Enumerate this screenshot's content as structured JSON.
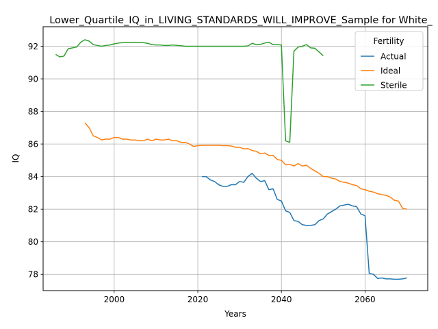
{
  "chart_data": {
    "type": "line",
    "title": "Lower_Quartile_IQ_in_LIVING_STANDARDS_WILL_IMPROVE_Sample for White_",
    "xlabel": "Years",
    "ylabel": "IQ",
    "xlim": [
      1983,
      2075
    ],
    "ylim": [
      77.0,
      93.2
    ],
    "xticks": [
      2000,
      2020,
      2040,
      2060
    ],
    "yticks": [
      78,
      80,
      82,
      84,
      86,
      88,
      90,
      92
    ],
    "grid": true,
    "legend": {
      "title": "Fertility",
      "position": "top-right"
    },
    "series": [
      {
        "name": "Actual",
        "color": "#1f77b4",
        "points": [
          [
            2021,
            84.0
          ],
          [
            2022,
            84.0
          ],
          [
            2023,
            83.8
          ],
          [
            2024,
            83.7
          ],
          [
            2025,
            83.5
          ],
          [
            2026,
            83.4
          ],
          [
            2027,
            83.4
          ],
          [
            2028,
            83.5
          ],
          [
            2029,
            83.5
          ],
          [
            2030,
            83.7
          ],
          [
            2031,
            83.65
          ],
          [
            2032,
            84.0
          ],
          [
            2033,
            84.2
          ],
          [
            2034,
            83.9
          ],
          [
            2035,
            83.7
          ],
          [
            2036,
            83.75
          ],
          [
            2037,
            83.2
          ],
          [
            2038,
            83.25
          ],
          [
            2039,
            82.6
          ],
          [
            2040,
            82.5
          ],
          [
            2041,
            81.9
          ],
          [
            2042,
            81.8
          ],
          [
            2043,
            81.3
          ],
          [
            2044,
            81.25
          ],
          [
            2045,
            81.05
          ],
          [
            2046,
            81.0
          ],
          [
            2047,
            81.0
          ],
          [
            2048,
            81.05
          ],
          [
            2049,
            81.3
          ],
          [
            2050,
            81.4
          ],
          [
            2051,
            81.7
          ],
          [
            2052,
            81.85
          ],
          [
            2053,
            82.0
          ],
          [
            2054,
            82.2
          ],
          [
            2055,
            82.25
          ],
          [
            2056,
            82.3
          ],
          [
            2057,
            82.2
          ],
          [
            2058,
            82.15
          ],
          [
            2059,
            81.7
          ],
          [
            2060,
            81.6
          ],
          [
            2061,
            78.05
          ],
          [
            2062,
            78.0
          ],
          [
            2063,
            77.75
          ],
          [
            2064,
            77.78
          ],
          [
            2065,
            77.72
          ],
          [
            2066,
            77.72
          ],
          [
            2067,
            77.7
          ],
          [
            2068,
            77.7
          ],
          [
            2069,
            77.72
          ],
          [
            2070,
            77.78
          ]
        ]
      },
      {
        "name": "Ideal",
        "color": "#ff7f0e",
        "points": [
          [
            1993,
            87.3
          ],
          [
            1994,
            87.0
          ],
          [
            1995,
            86.5
          ],
          [
            1996,
            86.4
          ],
          [
            1997,
            86.25
          ],
          [
            1998,
            86.3
          ],
          [
            1999,
            86.3
          ],
          [
            2000,
            86.4
          ],
          [
            2001,
            86.4
          ],
          [
            2002,
            86.3
          ],
          [
            2003,
            86.3
          ],
          [
            2004,
            86.25
          ],
          [
            2005,
            86.25
          ],
          [
            2006,
            86.2
          ],
          [
            2007,
            86.2
          ],
          [
            2008,
            86.3
          ],
          [
            2009,
            86.2
          ],
          [
            2010,
            86.3
          ],
          [
            2011,
            86.25
          ],
          [
            2012,
            86.25
          ],
          [
            2013,
            86.3
          ],
          [
            2014,
            86.2
          ],
          [
            2015,
            86.2
          ],
          [
            2016,
            86.1
          ],
          [
            2017,
            86.1
          ],
          [
            2018,
            86.0
          ],
          [
            2019,
            85.85
          ],
          [
            2020,
            85.9
          ],
          [
            2021,
            85.92
          ],
          [
            2022,
            85.92
          ],
          [
            2023,
            85.92
          ],
          [
            2024,
            85.92
          ],
          [
            2025,
            85.92
          ],
          [
            2026,
            85.9
          ],
          [
            2027,
            85.9
          ],
          [
            2028,
            85.88
          ],
          [
            2029,
            85.8
          ],
          [
            2030,
            85.8
          ],
          [
            2031,
            85.7
          ],
          [
            2032,
            85.72
          ],
          [
            2033,
            85.6
          ],
          [
            2034,
            85.55
          ],
          [
            2035,
            85.4
          ],
          [
            2036,
            85.45
          ],
          [
            2037,
            85.3
          ],
          [
            2038,
            85.3
          ],
          [
            2039,
            85.05
          ],
          [
            2040,
            85.0
          ],
          [
            2041,
            84.72
          ],
          [
            2042,
            84.75
          ],
          [
            2043,
            84.65
          ],
          [
            2044,
            84.8
          ],
          [
            2045,
            84.65
          ],
          [
            2046,
            84.7
          ],
          [
            2047,
            84.5
          ],
          [
            2048,
            84.35
          ],
          [
            2049,
            84.2
          ],
          [
            2050,
            84.0
          ],
          [
            2051,
            84.0
          ],
          [
            2052,
            83.9
          ],
          [
            2053,
            83.85
          ],
          [
            2054,
            83.7
          ],
          [
            2055,
            83.65
          ],
          [
            2056,
            83.6
          ],
          [
            2057,
            83.5
          ],
          [
            2058,
            83.45
          ],
          [
            2059,
            83.25
          ],
          [
            2060,
            83.2
          ],
          [
            2061,
            83.1
          ],
          [
            2062,
            83.05
          ],
          [
            2063,
            82.95
          ],
          [
            2064,
            82.9
          ],
          [
            2065,
            82.85
          ],
          [
            2066,
            82.75
          ],
          [
            2067,
            82.55
          ],
          [
            2068,
            82.5
          ],
          [
            2069,
            82.05
          ],
          [
            2070,
            82.0
          ]
        ]
      },
      {
        "name": "Sterile",
        "color": "#2ca02c",
        "points": [
          [
            1986,
            91.5
          ],
          [
            1987,
            91.35
          ],
          [
            1988,
            91.4
          ],
          [
            1989,
            91.85
          ],
          [
            1990,
            91.9
          ],
          [
            1991,
            91.95
          ],
          [
            1992,
            92.25
          ],
          [
            1993,
            92.4
          ],
          [
            1994,
            92.32
          ],
          [
            1995,
            92.1
          ],
          [
            1996,
            92.05
          ],
          [
            1997,
            92.0
          ],
          [
            1998,
            92.05
          ],
          [
            1999,
            92.08
          ],
          [
            2000,
            92.15
          ],
          [
            2001,
            92.2
          ],
          [
            2002,
            92.22
          ],
          [
            2003,
            92.25
          ],
          [
            2004,
            92.22
          ],
          [
            2005,
            92.25
          ],
          [
            2006,
            92.22
          ],
          [
            2007,
            92.22
          ],
          [
            2008,
            92.18
          ],
          [
            2009,
            92.1
          ],
          [
            2010,
            92.08
          ],
          [
            2011,
            92.08
          ],
          [
            2012,
            92.05
          ],
          [
            2013,
            92.05
          ],
          [
            2014,
            92.08
          ],
          [
            2015,
            92.05
          ],
          [
            2016,
            92.03
          ],
          [
            2017,
            92.0
          ],
          [
            2018,
            92.0
          ],
          [
            2019,
            92.0
          ],
          [
            2020,
            92.0
          ],
          [
            2021,
            92.0
          ],
          [
            2022,
            92.0
          ],
          [
            2023,
            92.0
          ],
          [
            2024,
            92.0
          ],
          [
            2025,
            92.0
          ],
          [
            2026,
            92.0
          ],
          [
            2027,
            92.0
          ],
          [
            2028,
            92.0
          ],
          [
            2029,
            92.0
          ],
          [
            2030,
            92.0
          ],
          [
            2031,
            92.0
          ],
          [
            2032,
            92.02
          ],
          [
            2033,
            92.18
          ],
          [
            2034,
            92.1
          ],
          [
            2035,
            92.12
          ],
          [
            2036,
            92.2
          ],
          [
            2037,
            92.25
          ],
          [
            2038,
            92.1
          ],
          [
            2039,
            92.1
          ],
          [
            2040,
            92.08
          ],
          [
            2041,
            86.2
          ],
          [
            2042,
            86.1
          ],
          [
            2043,
            91.7
          ],
          [
            2044,
            91.95
          ],
          [
            2045,
            92.0
          ],
          [
            2046,
            92.1
          ],
          [
            2047,
            91.9
          ],
          [
            2048,
            91.88
          ],
          [
            2049,
            91.65
          ],
          [
            2050,
            91.42
          ]
        ]
      }
    ]
  }
}
